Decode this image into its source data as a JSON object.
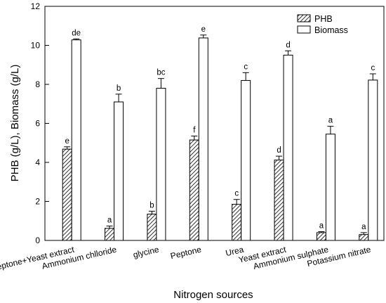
{
  "chart_data": {
    "type": "bar",
    "xlabel": "Nitrogen sources",
    "ylabel": "PHB (g/L), Biomass (g/L)",
    "ylim": [
      0,
      12
    ],
    "yticks": [
      0,
      2,
      4,
      6,
      8,
      10,
      12
    ],
    "categories": [
      "Peptone+Yeast extract",
      "Ammonium chlloride",
      "glycine",
      "Peptone",
      "Urea",
      "Yeast extract",
      "Ammonium sulphate",
      "Potassium nitrate"
    ],
    "legend_position": "top-right",
    "grid": false,
    "series": [
      {
        "name": "PHB",
        "pattern": "hatched",
        "color": "#000000",
        "values": [
          4.68,
          0.62,
          1.35,
          5.15,
          1.85,
          4.12,
          0.4,
          0.3
        ],
        "errors": [
          0.12,
          0.12,
          0.15,
          0.2,
          0.25,
          0.2,
          0.05,
          0.1
        ],
        "labels": [
          "e",
          "a",
          "b",
          "f",
          "c",
          "d",
          "a",
          "a"
        ]
      },
      {
        "name": "Biomass",
        "pattern": "open",
        "color": "#ffffff",
        "values": [
          10.28,
          7.1,
          7.8,
          10.38,
          8.2,
          9.5,
          5.45,
          8.22
        ],
        "errors": [
          0.05,
          0.4,
          0.5,
          0.15,
          0.4,
          0.22,
          0.4,
          0.32
        ],
        "labels": [
          "de",
          "b",
          "bc",
          "e",
          "c",
          "d",
          "a",
          "c"
        ]
      }
    ]
  }
}
